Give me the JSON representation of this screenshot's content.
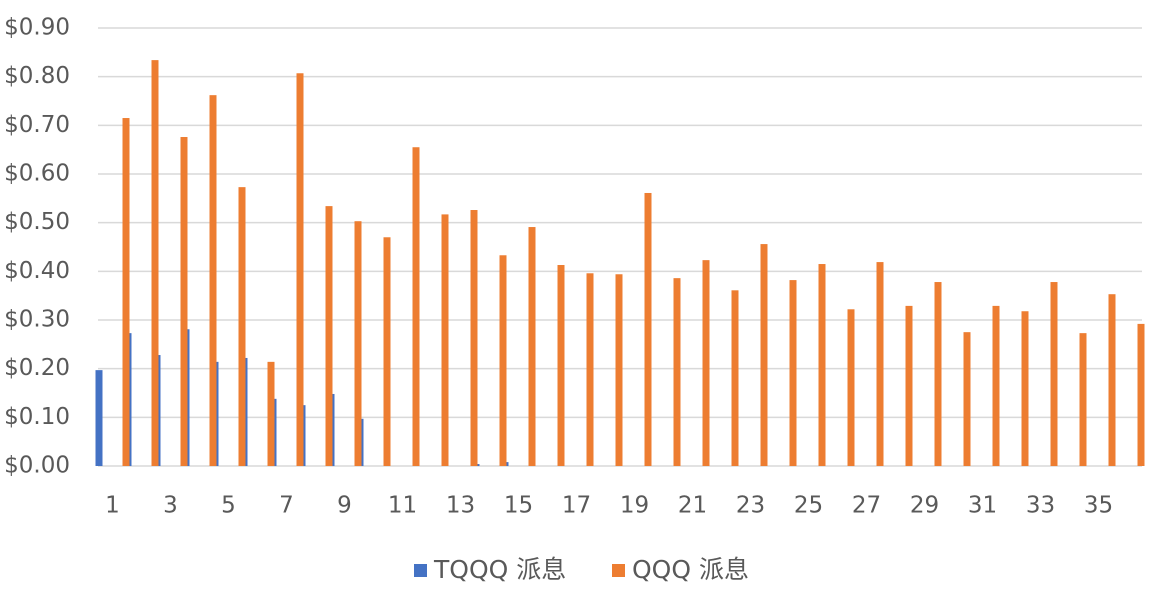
{
  "chart_data": {
    "type": "bar",
    "categories": [
      "1",
      null,
      "3",
      null,
      "5",
      null,
      "7",
      null,
      "9",
      null,
      "11",
      null,
      "13",
      null,
      "15",
      null,
      "17",
      null,
      "19",
      null,
      "21",
      null,
      "23",
      null,
      "25",
      null,
      "27",
      null,
      "29",
      null,
      "31",
      null,
      "33",
      null,
      "35",
      null
    ],
    "series": [
      {
        "name": "TQQQ 派息",
        "color": "#4472c4",
        "values": [
          0.197,
          0.273,
          0.228,
          0.281,
          0.214,
          0.222,
          0.138,
          0.125,
          0.148,
          0.097,
          0,
          0,
          0,
          0.004,
          0.008,
          0,
          0,
          0,
          0,
          0,
          0,
          0,
          0,
          0,
          0,
          0,
          0,
          0,
          0,
          0,
          0,
          0,
          0,
          0,
          0,
          0
        ]
      },
      {
        "name": "QQQ 派息",
        "color": "#ed7d31",
        "values": [
          0.715,
          0.834,
          0.676,
          0.762,
          0.573,
          0.214,
          0.807,
          0.534,
          0.503,
          0.47,
          0.655,
          0.517,
          0.526,
          0.433,
          0.491,
          0.413,
          0.396,
          0.394,
          0.561,
          0.386,
          0.423,
          0.361,
          0.456,
          0.382,
          0.415,
          0.322,
          0.419,
          0.329,
          0.378,
          0.275,
          0.329,
          0.318,
          0.378,
          0.273,
          0.353,
          0.292
        ]
      }
    ],
    "ylim": [
      0,
      0.9
    ],
    "yticks": [
      {
        "value": 0,
        "label": "$0.00"
      },
      {
        "value": 0.1,
        "label": "$0.10"
      },
      {
        "value": 0.2,
        "label": "$0.20"
      },
      {
        "value": 0.3,
        "label": "$0.30"
      },
      {
        "value": 0.4,
        "label": "$0.40"
      },
      {
        "value": 0.5,
        "label": "$0.50"
      },
      {
        "value": 0.6,
        "label": "$0.60"
      },
      {
        "value": 0.7,
        "label": "$0.70"
      },
      {
        "value": 0.8,
        "label": "$0.80"
      },
      {
        "value": 0.9,
        "label": "$0.90"
      }
    ],
    "grid": true,
    "legend": "bottom"
  }
}
